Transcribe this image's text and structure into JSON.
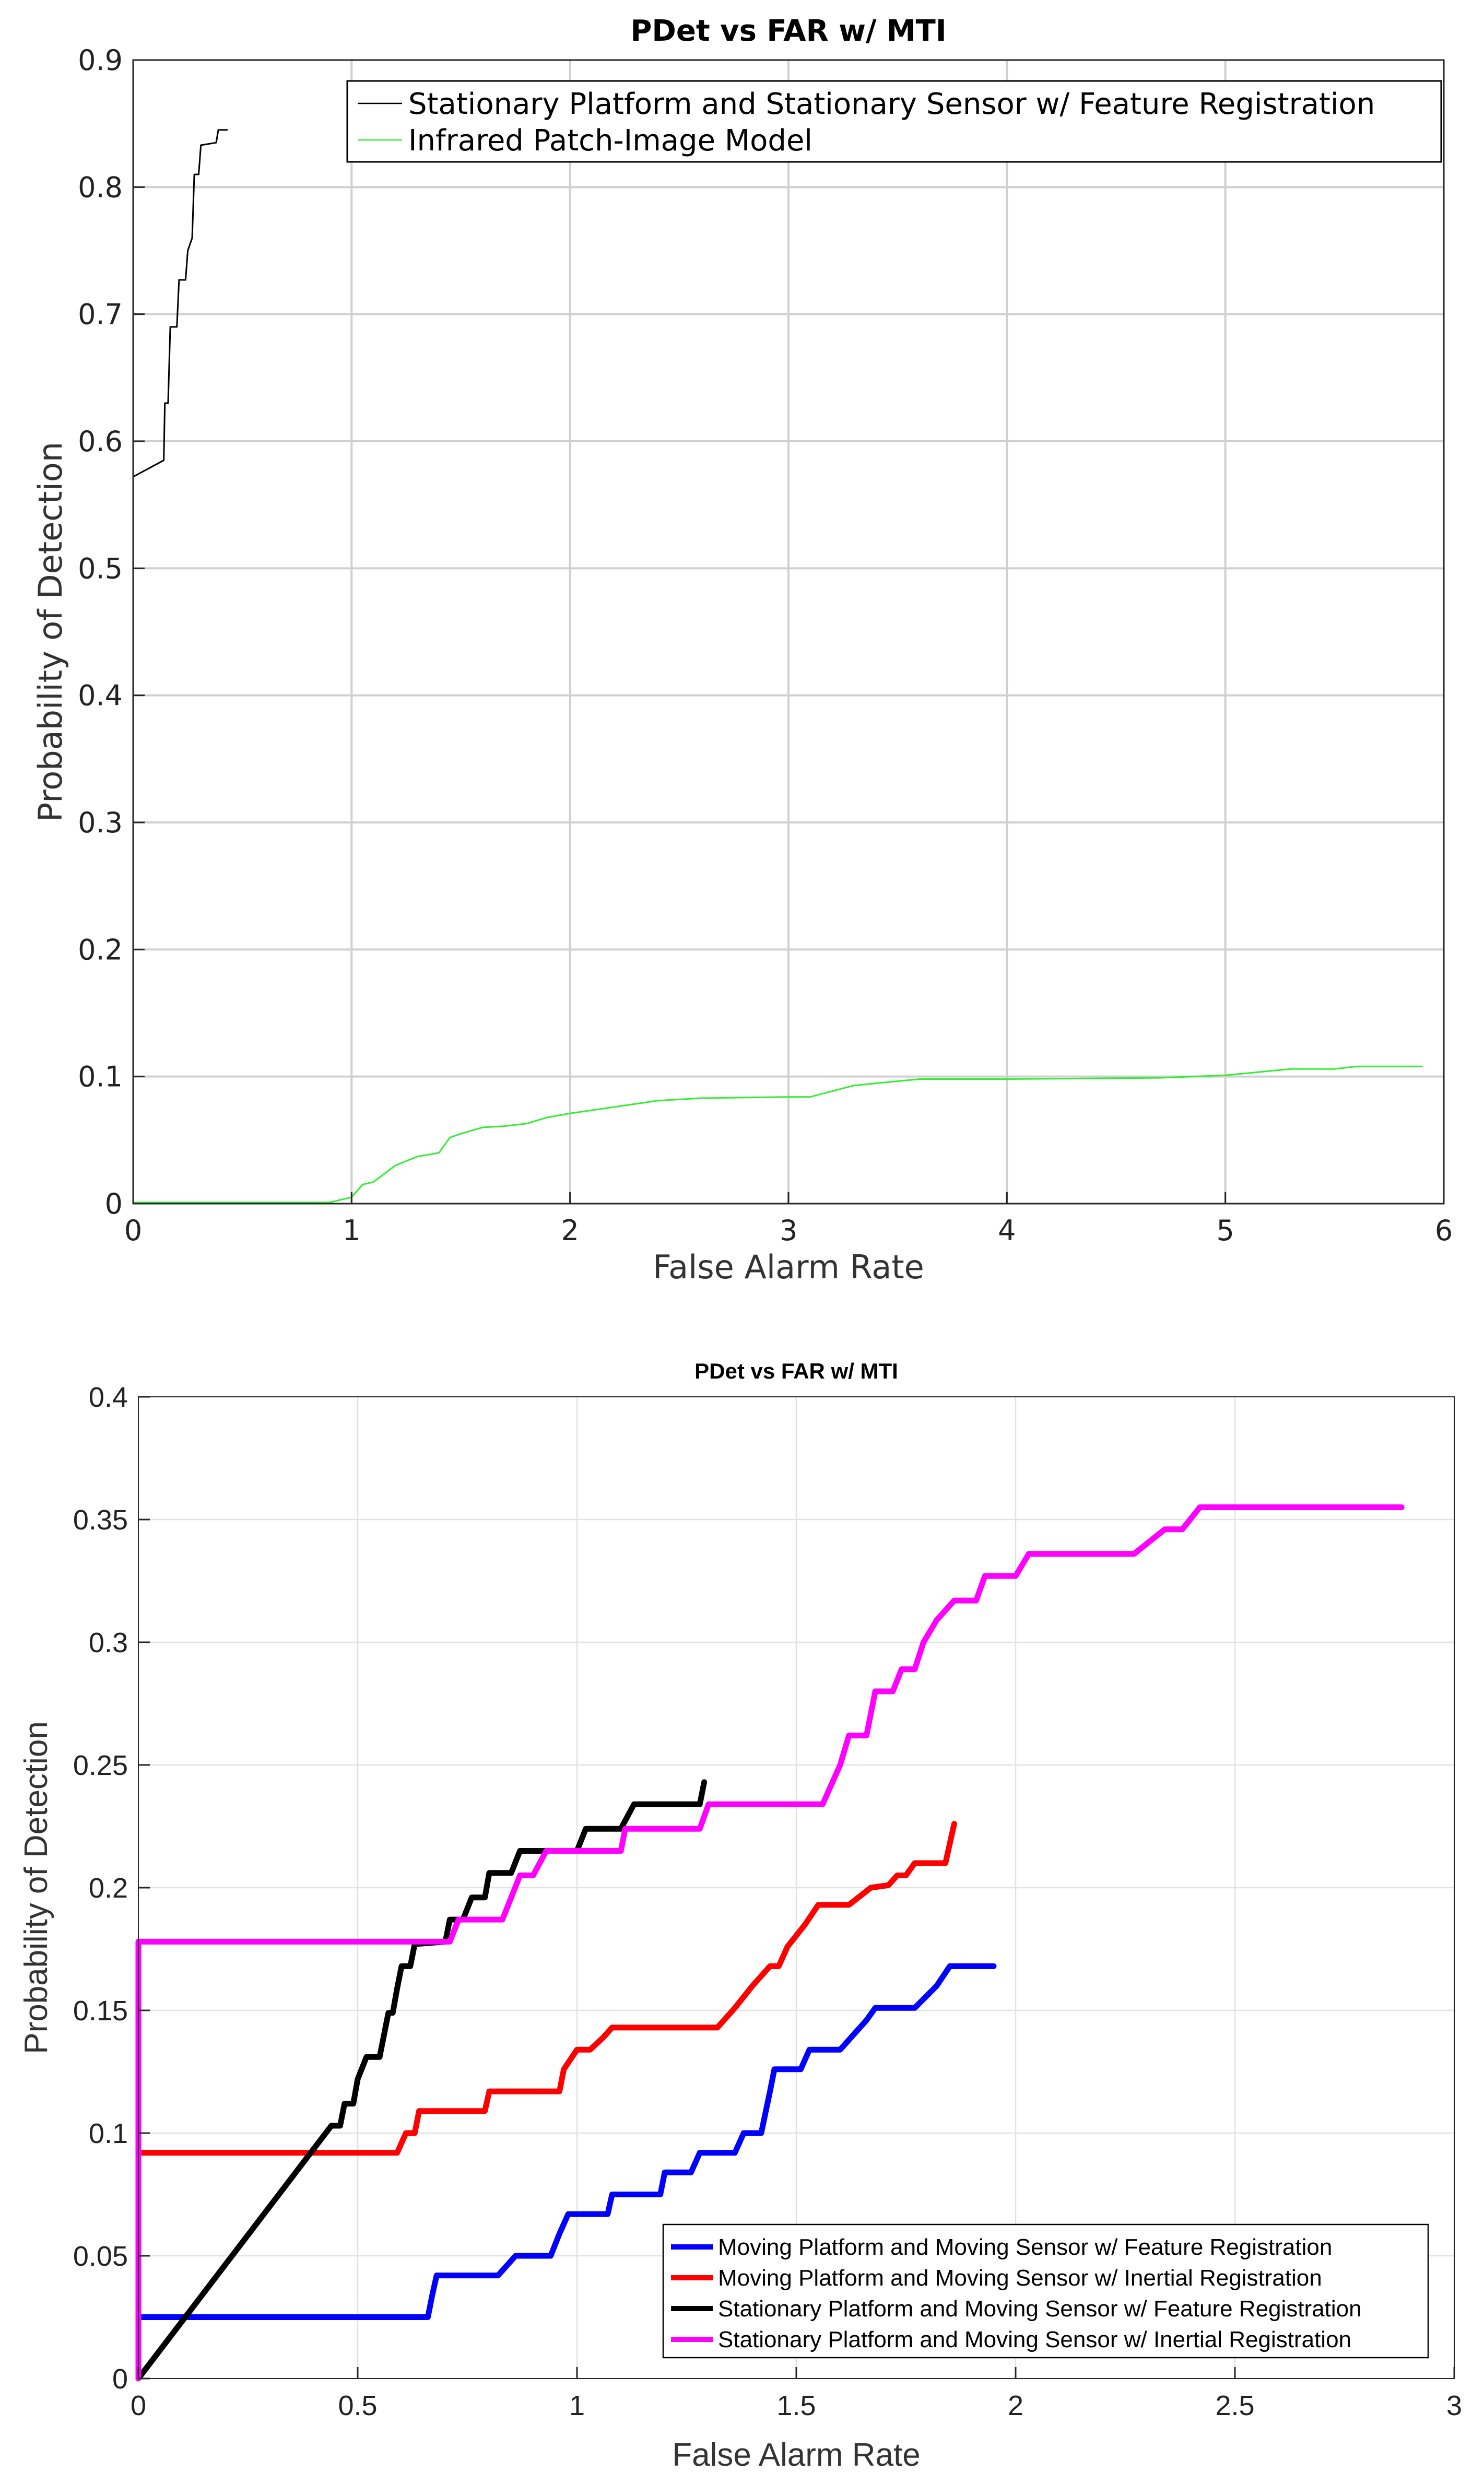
{
  "chart_data": [
    {
      "type": "line",
      "title": "PDet vs FAR w/ MTI",
      "xlabel": "False Alarm Rate",
      "ylabel": "Probability of Detection",
      "xlim": [
        0,
        6
      ],
      "ylim": [
        0,
        0.9
      ],
      "xticks": [
        "0",
        "1",
        "2",
        "3",
        "4",
        "5",
        "6"
      ],
      "yticks": [
        "0",
        "0.1",
        "0.2",
        "0.3",
        "0.4",
        "0.5",
        "0.6",
        "0.7",
        "0.8",
        "0.9"
      ],
      "grid": true,
      "legend_position": "top-right",
      "series": [
        {
          "name": "Stationary Platform and Stationary Sensor w/ Feature Registration",
          "color": "#000000",
          "points": [
            [
              0,
              0.572
            ],
            [
              0.14,
              0.585
            ],
            [
              0.145,
              0.63
            ],
            [
              0.16,
              0.63
            ],
            [
              0.17,
              0.69
            ],
            [
              0.2,
              0.69
            ],
            [
              0.21,
              0.727
            ],
            [
              0.24,
              0.727
            ],
            [
              0.25,
              0.75
            ],
            [
              0.27,
              0.76
            ],
            [
              0.28,
              0.81
            ],
            [
              0.3,
              0.81
            ],
            [
              0.31,
              0.833
            ],
            [
              0.38,
              0.835
            ],
            [
              0.39,
              0.845
            ],
            [
              0.43,
              0.845
            ]
          ]
        },
        {
          "name": "Infrared Patch-Image Model",
          "color": "#33ee33",
          "points": [
            [
              0,
              0.001
            ],
            [
              0.9,
              0.001
            ],
            [
              1.0,
              0.005
            ],
            [
              1.05,
              0.015
            ],
            [
              1.1,
              0.017
            ],
            [
              1.2,
              0.03
            ],
            [
              1.3,
              0.037
            ],
            [
              1.4,
              0.04
            ],
            [
              1.45,
              0.052
            ],
            [
              1.5,
              0.055
            ],
            [
              1.6,
              0.06
            ],
            [
              1.7,
              0.061
            ],
            [
              1.8,
              0.063
            ],
            [
              1.9,
              0.068
            ],
            [
              2.0,
              0.071
            ],
            [
              2.2,
              0.076
            ],
            [
              2.4,
              0.081
            ],
            [
              2.6,
              0.083
            ],
            [
              3.0,
              0.084
            ],
            [
              3.1,
              0.084
            ],
            [
              3.3,
              0.093
            ],
            [
              3.6,
              0.098
            ],
            [
              4.0,
              0.098
            ],
            [
              4.7,
              0.099
            ],
            [
              5.0,
              0.101
            ],
            [
              5.3,
              0.106
            ],
            [
              5.5,
              0.106
            ],
            [
              5.6,
              0.108
            ],
            [
              5.9,
              0.108
            ]
          ]
        }
      ]
    },
    {
      "type": "line",
      "title": "PDet vs FAR w/ MTI",
      "xlabel": "False Alarm Rate",
      "ylabel": "Probability of Detection",
      "xlim": [
        0,
        3
      ],
      "ylim": [
        0,
        0.4
      ],
      "xticks": [
        "0",
        "0.5",
        "1",
        "1.5",
        "2",
        "2.5",
        "3"
      ],
      "yticks": [
        "0",
        "0.05",
        "0.1",
        "0.15",
        "0.2",
        "0.25",
        "0.3",
        "0.35",
        "0.4"
      ],
      "grid": true,
      "legend_position": "bottom-right",
      "series": [
        {
          "name": "Moving Platform and Moving Sensor w/ Feature Registration",
          "color": "#0000ff",
          "points": [
            [
              0,
              0.025
            ],
            [
              0.66,
              0.025
            ],
            [
              0.67,
              0.034
            ],
            [
              0.68,
              0.042
            ],
            [
              0.82,
              0.042
            ],
            [
              0.86,
              0.05
            ],
            [
              0.94,
              0.05
            ],
            [
              0.96,
              0.059
            ],
            [
              0.98,
              0.067
            ],
            [
              1.07,
              0.067
            ],
            [
              1.08,
              0.075
            ],
            [
              1.19,
              0.075
            ],
            [
              1.2,
              0.084
            ],
            [
              1.26,
              0.084
            ],
            [
              1.27,
              0.088
            ],
            [
              1.28,
              0.092
            ],
            [
              1.36,
              0.092
            ],
            [
              1.38,
              0.1
            ],
            [
              1.42,
              0.1
            ],
            [
              1.44,
              0.117
            ],
            [
              1.45,
              0.126
            ],
            [
              1.51,
              0.126
            ],
            [
              1.53,
              0.134
            ],
            [
              1.6,
              0.134
            ],
            [
              1.64,
              0.142
            ],
            [
              1.66,
              0.146
            ],
            [
              1.68,
              0.151
            ],
            [
              1.77,
              0.151
            ],
            [
              1.82,
              0.16
            ],
            [
              1.85,
              0.168
            ],
            [
              1.95,
              0.168
            ]
          ]
        },
        {
          "name": "Moving Platform and Moving Sensor w/ Inertial Registration",
          "color": "#ff0000",
          "points": [
            [
              0,
              0.092
            ],
            [
              0.59,
              0.092
            ],
            [
              0.61,
              0.1
            ],
            [
              0.63,
              0.1
            ],
            [
              0.64,
              0.109
            ],
            [
              0.79,
              0.109
            ],
            [
              0.8,
              0.117
            ],
            [
              0.96,
              0.117
            ],
            [
              0.97,
              0.126
            ],
            [
              1.0,
              0.134
            ],
            [
              1.03,
              0.134
            ],
            [
              1.06,
              0.139
            ],
            [
              1.08,
              0.143
            ],
            [
              1.32,
              0.143
            ],
            [
              1.36,
              0.151
            ],
            [
              1.4,
              0.16
            ],
            [
              1.44,
              0.168
            ],
            [
              1.46,
              0.168
            ],
            [
              1.48,
              0.176
            ],
            [
              1.52,
              0.185
            ],
            [
              1.55,
              0.193
            ],
            [
              1.62,
              0.193
            ],
            [
              1.67,
              0.2
            ],
            [
              1.71,
              0.201
            ],
            [
              1.73,
              0.205
            ],
            [
              1.75,
              0.205
            ],
            [
              1.77,
              0.21
            ],
            [
              1.84,
              0.21
            ],
            [
              1.86,
              0.226
            ]
          ]
        },
        {
          "name": "Stationary Platform and Moving Sensor w/ Feature Registration",
          "color": "#000000",
          "points": [
            [
              0,
              0
            ],
            [
              0.44,
              0.103
            ],
            [
              0.46,
              0.103
            ],
            [
              0.47,
              0.112
            ],
            [
              0.49,
              0.112
            ],
            [
              0.5,
              0.122
            ],
            [
              0.52,
              0.131
            ],
            [
              0.55,
              0.131
            ],
            [
              0.56,
              0.14
            ],
            [
              0.57,
              0.149
            ],
            [
              0.58,
              0.149
            ],
            [
              0.59,
              0.159
            ],
            [
              0.6,
              0.168
            ],
            [
              0.62,
              0.168
            ],
            [
              0.63,
              0.177
            ],
            [
              0.7,
              0.178
            ],
            [
              0.71,
              0.187
            ],
            [
              0.74,
              0.187
            ],
            [
              0.76,
              0.196
            ],
            [
              0.79,
              0.196
            ],
            [
              0.8,
              0.206
            ],
            [
              0.85,
              0.206
            ],
            [
              0.87,
              0.215
            ],
            [
              1.0,
              0.215
            ],
            [
              1.02,
              0.224
            ],
            [
              1.1,
              0.224
            ],
            [
              1.13,
              0.234
            ],
            [
              1.28,
              0.234
            ],
            [
              1.29,
              0.243
            ]
          ]
        },
        {
          "name": "Stationary Platform and Moving Sensor w/ Inertial Registration",
          "color": "#ff00ff",
          "points": [
            [
              0,
              0
            ],
            [
              0,
              0.178
            ],
            [
              0.71,
              0.178
            ],
            [
              0.73,
              0.187
            ],
            [
              0.83,
              0.187
            ],
            [
              0.85,
              0.196
            ],
            [
              0.87,
              0.205
            ],
            [
              0.9,
              0.205
            ],
            [
              0.93,
              0.215
            ],
            [
              1.1,
              0.215
            ],
            [
              1.11,
              0.224
            ],
            [
              1.28,
              0.224
            ],
            [
              1.3,
              0.234
            ],
            [
              1.56,
              0.234
            ],
            [
              1.6,
              0.25
            ],
            [
              1.62,
              0.262
            ],
            [
              1.66,
              0.262
            ],
            [
              1.68,
              0.28
            ],
            [
              1.72,
              0.28
            ],
            [
              1.74,
              0.289
            ],
            [
              1.77,
              0.289
            ],
            [
              1.79,
              0.3
            ],
            [
              1.82,
              0.309
            ],
            [
              1.86,
              0.317
            ],
            [
              1.91,
              0.317
            ],
            [
              1.93,
              0.327
            ],
            [
              2.0,
              0.327
            ],
            [
              2.03,
              0.336
            ],
            [
              2.27,
              0.336
            ],
            [
              2.34,
              0.346
            ],
            [
              2.38,
              0.346
            ],
            [
              2.42,
              0.355
            ],
            [
              2.88,
              0.355
            ]
          ]
        }
      ]
    }
  ]
}
